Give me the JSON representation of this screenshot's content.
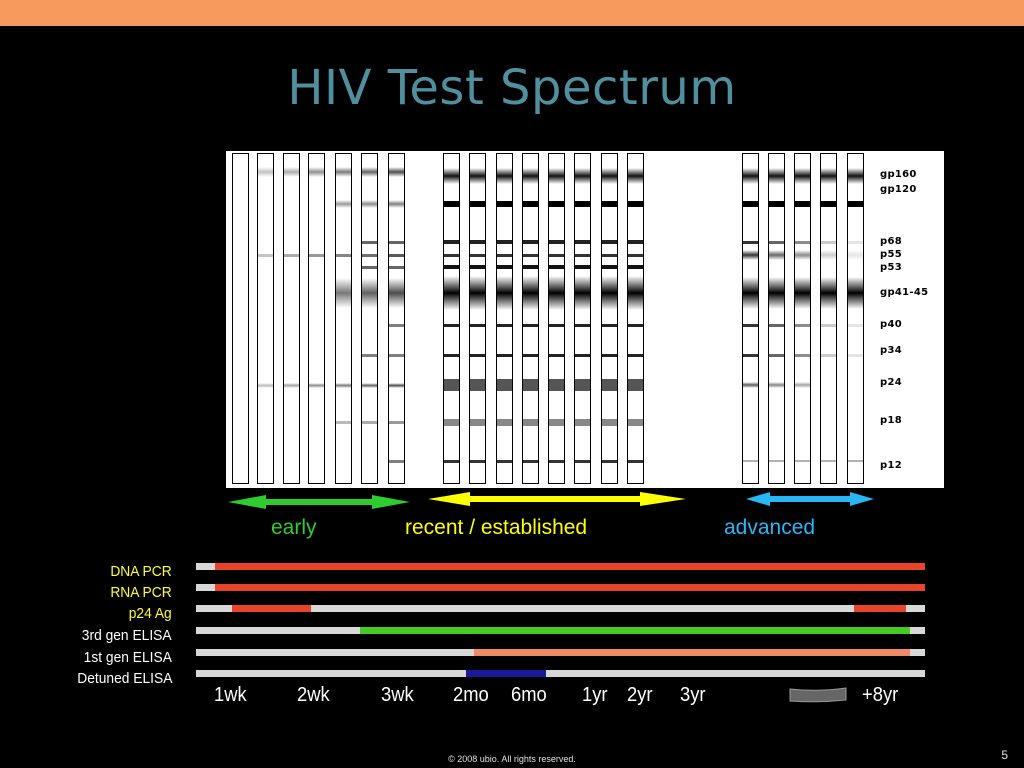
{
  "slide": {
    "title": "HIV Test Spectrum",
    "footer": "© 2008 ubio. All rights reserved.",
    "page_number": "5",
    "accent_color": "#f79a5e"
  },
  "blot": {
    "bands": [
      "gp160",
      "gp120",
      "p68",
      "p55",
      "p53",
      "gp41-45",
      "p40",
      "p34",
      "p24",
      "p18",
      "p12"
    ]
  },
  "phases": [
    {
      "label": "early",
      "color": "#2ecc2e"
    },
    {
      "label": "recent / established",
      "color": "#ffff00"
    },
    {
      "label": "advanced",
      "color": "#29b6f6"
    }
  ],
  "tests": [
    {
      "label": "DNA PCR",
      "label_color": "#ffff33",
      "bar_color": "#e8442a"
    },
    {
      "label": "RNA PCR",
      "label_color": "#ffff33",
      "bar_color": "#e8442a"
    },
    {
      "label": "p24 Ag",
      "label_color": "#ffff33",
      "bar_color": "#e8442a"
    },
    {
      "label": "3rd gen ELISA",
      "label_color": "#ffffff",
      "bar_color": "#44cc22"
    },
    {
      "label": "1st gen ELISA",
      "label_color": "#ffffff",
      "bar_color": "#ee8a66"
    },
    {
      "label": "Detuned ELISA",
      "label_color": "#ffffff",
      "bar_color": "#1a1a99"
    }
  ],
  "timeline": [
    "1wk",
    "2wk",
    "3wk",
    "2mo",
    "6mo",
    "1yr",
    "2yr",
    "3yr",
    "+8yr"
  ]
}
